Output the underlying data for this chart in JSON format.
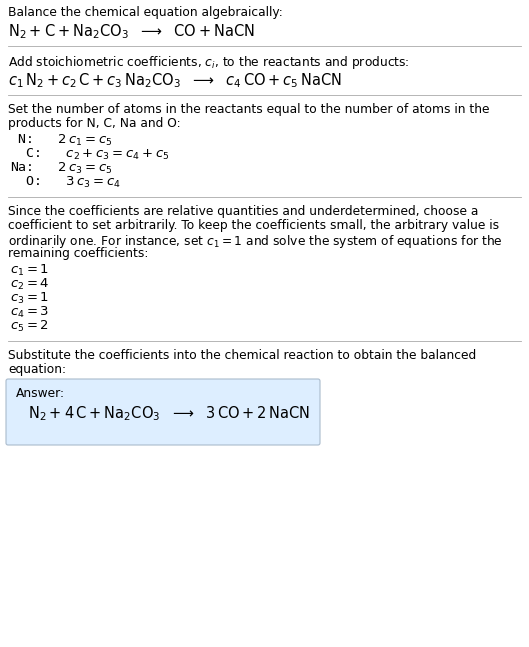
{
  "bg_color": "#ffffff",
  "text_color": "#000000",
  "divider_color": "#aaaaaa",
  "answer_box_facecolor": "#ddeeff",
  "answer_box_edgecolor": "#aabbcc",
  "sections": [
    {
      "type": "text_then_eq",
      "text": "Balance the chemical equation algebraically:",
      "eq": "N2_eq1"
    },
    {
      "type": "text_then_eq",
      "text": "Add stoichiometric coefficients, ci, to the reactants and products:",
      "eq": "N2_eq2"
    },
    {
      "type": "text_then_eqlines",
      "text": "Set the number of atoms in the reactants equal to the number of atoms in the products for N, C, Na and O:"
    },
    {
      "type": "text_then_eqlines2",
      "text": "Since the coefficients are relative quantities and underdetermined, choose a coefficient to set arbitrarily. To keep the coefficients small, the arbitrary value is ordinarily one. For instance, set c1=1 and solve the system of equations for the remaining coefficients:"
    },
    {
      "type": "text_then_answer",
      "text": "Substitute the coefficients into the chemical reaction to obtain the balanced equation:"
    }
  ]
}
